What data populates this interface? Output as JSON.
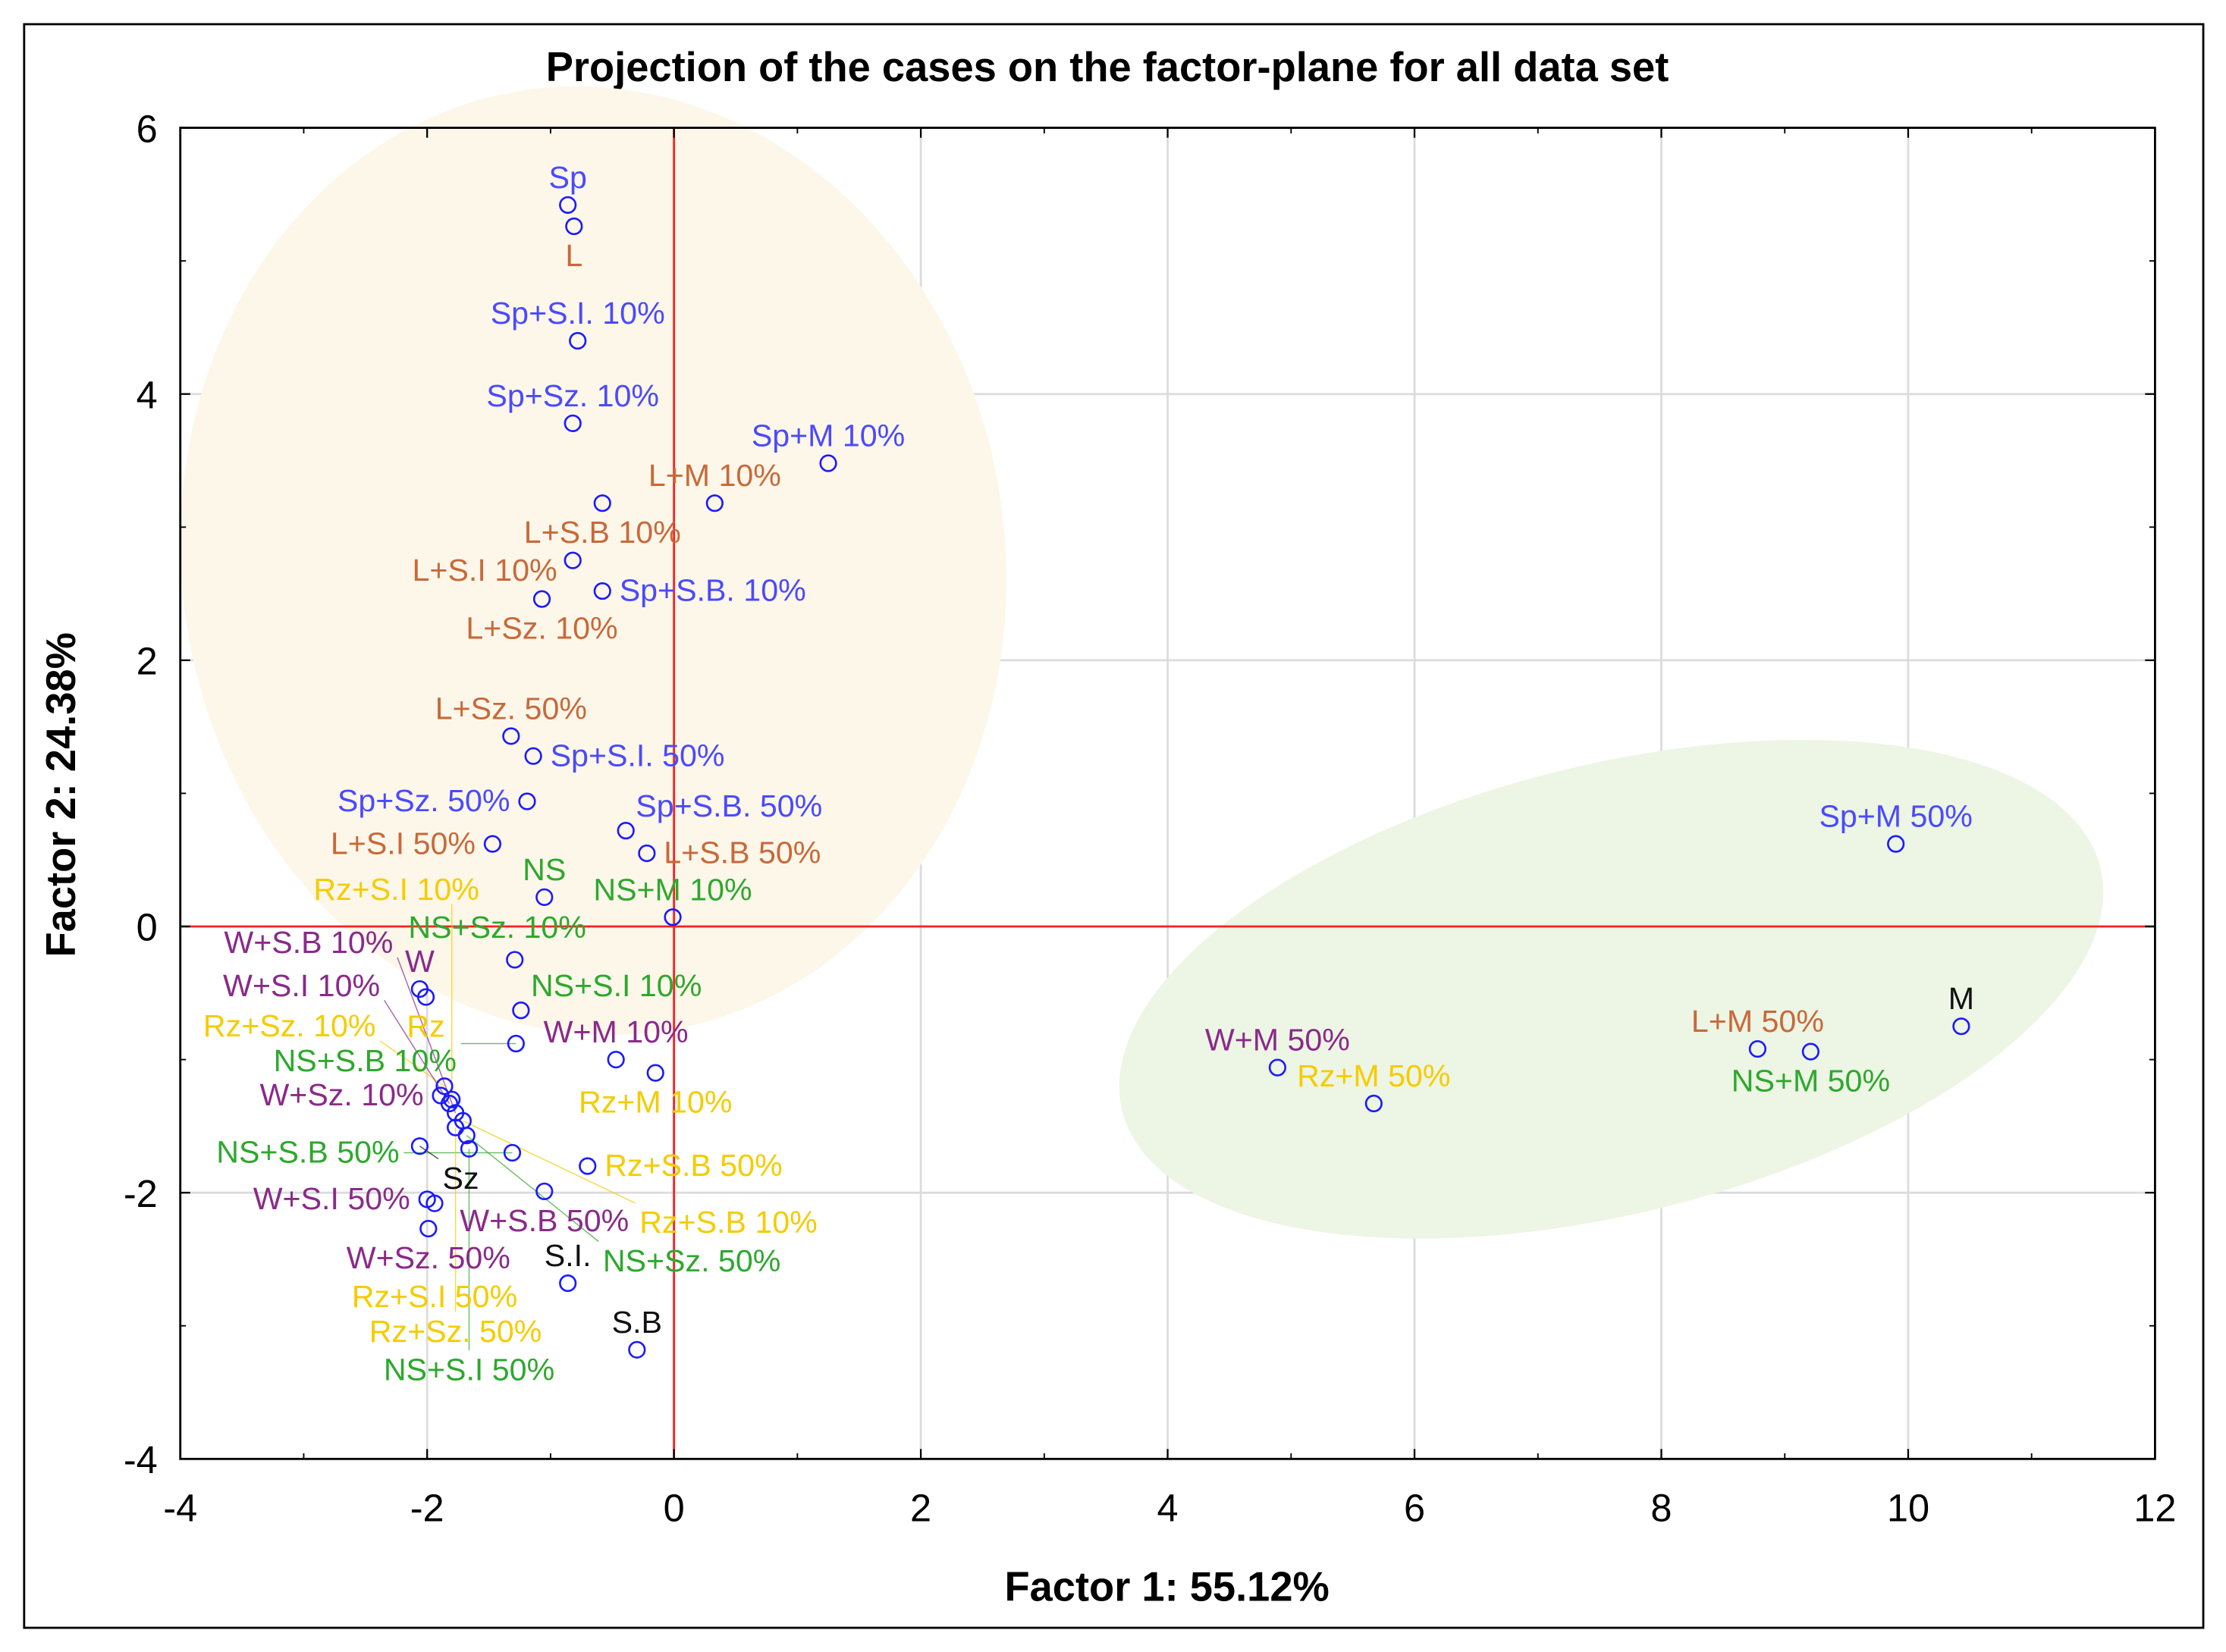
{
  "chart_data": {
    "type": "scatter",
    "title": "Projection of the cases on the factor-plane for all data set",
    "xlabel": "Factor 1: 55.12%",
    "ylabel": "Factor 2: 24.38%",
    "xlim": [
      -4,
      12
    ],
    "ylim": [
      -4,
      6
    ],
    "xticks": [
      -4,
      -2,
      0,
      2,
      4,
      6,
      8,
      10,
      12
    ],
    "yticks": [
      -4,
      -2,
      0,
      2,
      4,
      6
    ],
    "grid": true,
    "reference_lines": {
      "x": 0,
      "y": 0,
      "color": "#ff2020"
    },
    "colors": {
      "Sp": "#4a4aff",
      "L": "#c8693a",
      "NS": "#2ea82e",
      "Rz": "#f5cc00",
      "W": "#8a2a8a",
      "base": "#111111",
      "marker": "#1a1aff"
    },
    "points": [
      {
        "label": "Sp",
        "group": "Sp",
        "x": -0.86,
        "y": 5.42
      },
      {
        "label": "L",
        "group": "L",
        "x": -0.81,
        "y": 5.26
      },
      {
        "label": "Sp+S.I. 10%",
        "group": "Sp",
        "x": -0.78,
        "y": 4.4
      },
      {
        "label": "Sp+Sz. 10%",
        "group": "Sp",
        "x": -0.82,
        "y": 3.78
      },
      {
        "label": "Sp+M 10%",
        "group": "Sp",
        "x": 1.25,
        "y": 3.48
      },
      {
        "label": "L+S.B 10%",
        "group": "L",
        "x": -0.58,
        "y": 3.18
      },
      {
        "label": "L+M 10%",
        "group": "L",
        "x": 0.33,
        "y": 3.18
      },
      {
        "label": "L+S.I 10%",
        "group": "L",
        "x": -0.82,
        "y": 2.75
      },
      {
        "label": "Sp+S.B. 10%",
        "group": "Sp",
        "x": -0.58,
        "y": 2.52
      },
      {
        "label": "L+Sz. 10%",
        "group": "L",
        "x": -1.07,
        "y": 2.46
      },
      {
        "label": "L+Sz. 50%",
        "group": "L",
        "x": -1.32,
        "y": 1.43
      },
      {
        "label": "Sp+S.I. 50%",
        "group": "Sp",
        "x": -1.14,
        "y": 1.28
      },
      {
        "label": "Sp+Sz. 50%",
        "group": "Sp",
        "x": -1.19,
        "y": 0.94
      },
      {
        "label": "Sp+S.B. 50%",
        "group": "Sp",
        "x": -0.39,
        "y": 0.72
      },
      {
        "label": "L+S.I 50%",
        "group": "L",
        "x": -1.47,
        "y": 0.62
      },
      {
        "label": "L+S.B 50%",
        "group": "L",
        "x": -0.22,
        "y": 0.55
      },
      {
        "label": "NS",
        "group": "NS",
        "x": -1.05,
        "y": 0.22
      },
      {
        "label": "NS+M 10%",
        "group": "NS",
        "x": -0.01,
        "y": 0.07
      },
      {
        "label": "NS+Sz. 10%",
        "group": "NS",
        "x": -1.29,
        "y": -0.25
      },
      {
        "label": "Rz",
        "group": "Rz",
        "x": -2.01,
        "y": -0.53
      },
      {
        "label": "W",
        "group": "W",
        "x": -2.06,
        "y": -0.47
      },
      {
        "label": "NS+S.I 10%",
        "group": "NS",
        "x": -1.24,
        "y": -0.63
      },
      {
        "label": "NS+S.B 10%",
        "group": "NS",
        "x": -1.28,
        "y": -0.88
      },
      {
        "label": "W+M 10%",
        "group": "W",
        "x": -0.47,
        "y": -1.0
      },
      {
        "label": "Rz+M 10%",
        "group": "Rz",
        "x": -0.15,
        "y": -1.1
      },
      {
        "label": "Rz+Sz. 10%",
        "group": "Rz",
        "x": -1.86,
        "y": -1.2
      },
      {
        "label": "W+Sz. 10%",
        "group": "W",
        "x": -1.89,
        "y": -1.27
      },
      {
        "label": "Rz+S.I 10%",
        "group": "Rz",
        "x": -1.8,
        "y": -1.3
      },
      {
        "label": "W+S.I 10%",
        "group": "W",
        "x": -1.82,
        "y": -1.33
      },
      {
        "label": "W+S.B 10%",
        "group": "W",
        "x": -1.77,
        "y": -1.4
      },
      {
        "label": "Rz+S.B 10%",
        "group": "Rz",
        "x": -1.71,
        "y": -1.46
      },
      {
        "label": "Rz+Sz. 50%",
        "group": "Rz",
        "x": -1.77,
        "y": -1.51
      },
      {
        "label": "NS+Sz. 50%",
        "group": "NS",
        "x": -1.68,
        "y": -1.57
      },
      {
        "label": "NS+S.I 50%",
        "group": "NS",
        "x": -1.66,
        "y": -1.67
      },
      {
        "label": "W+S.B 50%",
        "group": "W",
        "x": -1.05,
        "y": -1.99
      },
      {
        "label": "NS+S.B 50%",
        "group": "NS",
        "x": -1.31,
        "y": -1.7
      },
      {
        "label": "Rz+S.B 50%",
        "group": "Rz",
        "x": -0.7,
        "y": -1.8
      },
      {
        "label": "Sz",
        "group": "base",
        "x": -2.06,
        "y": -1.65
      },
      {
        "label": "W+S.I 50%",
        "group": "W",
        "x": -2.0,
        "y": -2.05
      },
      {
        "label": "Rz+S.I 50%",
        "group": "Rz",
        "x": -1.94,
        "y": -2.08
      },
      {
        "label": "W+Sz. 50%",
        "group": "W",
        "x": -1.99,
        "y": -2.27
      },
      {
        "label": "S.I.",
        "group": "base",
        "x": -0.86,
        "y": -2.68
      },
      {
        "label": "S.B",
        "group": "base",
        "x": -0.3,
        "y": -3.18
      },
      {
        "label": "W+M 50%",
        "group": "W",
        "x": 4.89,
        "y": -1.06
      },
      {
        "label": "Rz+M 50%",
        "group": "Rz",
        "x": 5.67,
        "y": -1.33
      },
      {
        "label": "Sp+M 50%",
        "group": "Sp",
        "x": 9.9,
        "y": 0.62
      },
      {
        "label": "L+M 50%",
        "group": "L",
        "x": 8.78,
        "y": -0.92
      },
      {
        "label": "NS+M 50%",
        "group": "NS",
        "x": 9.21,
        "y": -0.94
      },
      {
        "label": "M",
        "group": "base",
        "x": 10.43,
        "y": -0.75
      }
    ]
  }
}
